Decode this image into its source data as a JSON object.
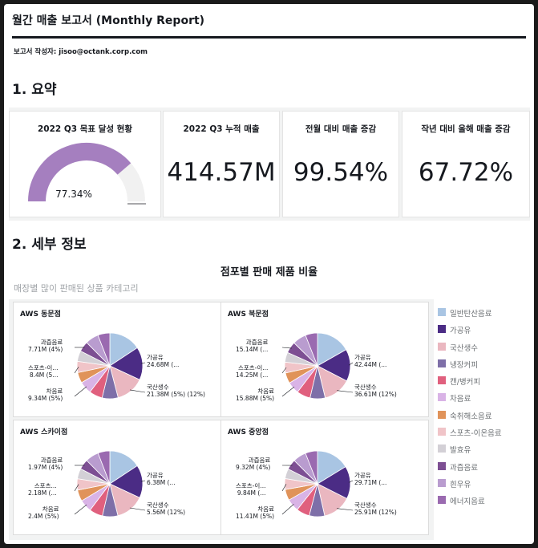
{
  "report": {
    "title": "월간 매출 보고서 (Monthly Report)",
    "author": "보고서 작성자: jisoo@octank.corp.com"
  },
  "sections": {
    "summary_title": "1. 요약",
    "detail_title": "2. 세부 정보"
  },
  "kpis": [
    {
      "label": "2022 Q3 목표 달성 현황",
      "value": "77.34%",
      "gauge_fraction": 0.7734
    },
    {
      "label": "2022 Q3 누적 매출",
      "value": "414.57M"
    },
    {
      "label": "전월 대비 매출 증감",
      "value": "99.54%"
    },
    {
      "label": "작년 대비 올해 매출 증감",
      "value": "67.72%"
    }
  ],
  "chart_title": "점포별 판매 제품 비율",
  "chart_subtitle": "매장별 많이 판매된 상품 카테고리",
  "chart_data": {
    "type": "pie",
    "title": "점포별 판매 제품 비율",
    "subtitle": "매장별 많이 판매된 상품 카테고리",
    "legend_position": "right",
    "categories": [
      "일반탄산음료",
      "가공유",
      "국산생수",
      "냉장커피",
      "캔/병커피",
      "차음료",
      "숙취해소음료",
      "스포츠-이온음료",
      "발효유",
      "과즙음료",
      "흰우유",
      "에너지음료"
    ],
    "colors": [
      "#a9c5e3",
      "#4b2c85",
      "#eab7c0",
      "#7e6fa8",
      "#e0607e",
      "#d9b3e6",
      "#e0935a",
      "#f0c4c8",
      "#d3d0d6",
      "#7d4f93",
      "#b99ccf",
      "#9a6ab0"
    ],
    "series": [
      {
        "name": "AWS 동문점",
        "values": [
          24,
          24.68,
          21.38,
          12,
          10,
          9.34,
          8,
          8.4,
          8,
          7.71,
          10,
          9
        ],
        "labels": [
          {
            "category": "가공유",
            "text": "가공유\n24.68M (..."
          },
          {
            "category": "국산생수",
            "text": "국산생수\n21.38M (5%) (12%)"
          },
          {
            "category": "과즙음료",
            "text": "과즙음료\n7.71M (4%)"
          },
          {
            "category": "스포츠-이온음료",
            "text": "스포츠-이...\n8.4M (5..."
          },
          {
            "category": "차음료",
            "text": "차음료\n9.34M (5%)"
          }
        ]
      },
      {
        "name": "AWS 북문점",
        "values": [
          45,
          42.44,
          36.61,
          20,
          18,
          15.88,
          14,
          14.25,
          13,
          15.14,
          18,
          16
        ],
        "labels": [
          {
            "category": "가공유",
            "text": "가공유\n42.44M (..."
          },
          {
            "category": "국산생수",
            "text": "국산생수\n36.61M (12%)"
          },
          {
            "category": "과즙음료",
            "text": "과즙음료\n15.14M (..."
          },
          {
            "category": "스포츠-이온음료",
            "text": "스포츠-이...\n14.25M (..."
          },
          {
            "category": "차음료",
            "text": "차음료\n15.88M (5%)"
          }
        ]
      },
      {
        "name": "AWS 스카이점",
        "values": [
          6.2,
          6.38,
          5.56,
          3,
          2.6,
          2.4,
          2.2,
          2.18,
          2,
          1.97,
          2.6,
          2.3
        ],
        "labels": [
          {
            "category": "가공유",
            "text": "가공유\n6.38M (..."
          },
          {
            "category": "국산생수",
            "text": "국산생수\n5.56M (12%)"
          },
          {
            "category": "과즙음료",
            "text": "과즙음료\n1.97M (4%)"
          },
          {
            "category": "스포츠-이온음료",
            "text": "스포츠...\n2.18M (..."
          },
          {
            "category": "차음료",
            "text": "차음료\n2.4M (5%)"
          }
        ]
      },
      {
        "name": "AWS 중앙점",
        "values": [
          30,
          29.71,
          25.91,
          14,
          12,
          11.41,
          10,
          9.84,
          9,
          9.32,
          12,
          11
        ],
        "labels": [
          {
            "category": "가공유",
            "text": "가공유\n29.71M (..."
          },
          {
            "category": "국산생수",
            "text": "국산생수\n25.91M (12%)"
          },
          {
            "category": "과즙음료",
            "text": "과즙음료\n9.32M (4%)"
          },
          {
            "category": "스포츠-이온음료",
            "text": "스포츠-이...\n9.84M (..."
          },
          {
            "category": "차음료",
            "text": "차음료\n11.41M (5%)"
          }
        ]
      }
    ]
  },
  "colors": {
    "gauge_fill": "#a57fbf",
    "gauge_track": "#f1f1f1",
    "text": "#16191f"
  }
}
